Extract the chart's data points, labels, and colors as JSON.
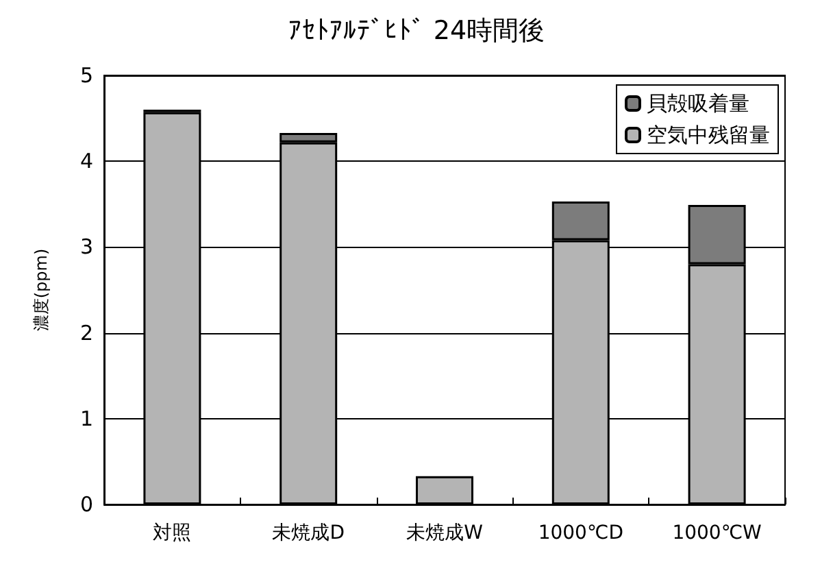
{
  "chart_data": {
    "type": "bar",
    "title": "ｱｾﾄｱﾙﾃﾞﾋﾄﾞ 24時間後",
    "ylabel": "濃度(ppm)",
    "categories": [
      "対照",
      "未焼成D",
      "未焼成W",
      "1000℃D",
      "1000℃W"
    ],
    "series": [
      {
        "name": "空気中残留量",
        "color": "#b4b4b4",
        "values": [
          4.57,
          4.22,
          0.33,
          3.08,
          2.8
        ]
      },
      {
        "name": "貝殻吸着量",
        "color": "#7c7c7c",
        "values": [
          0.03,
          0.11,
          null,
          0.45,
          0.69
        ]
      }
    ],
    "stacked": true,
    "ylim": [
      0,
      5
    ],
    "yticks": [
      0,
      1,
      2,
      3,
      4,
      5
    ],
    "grid": "y",
    "legend": "top right"
  }
}
